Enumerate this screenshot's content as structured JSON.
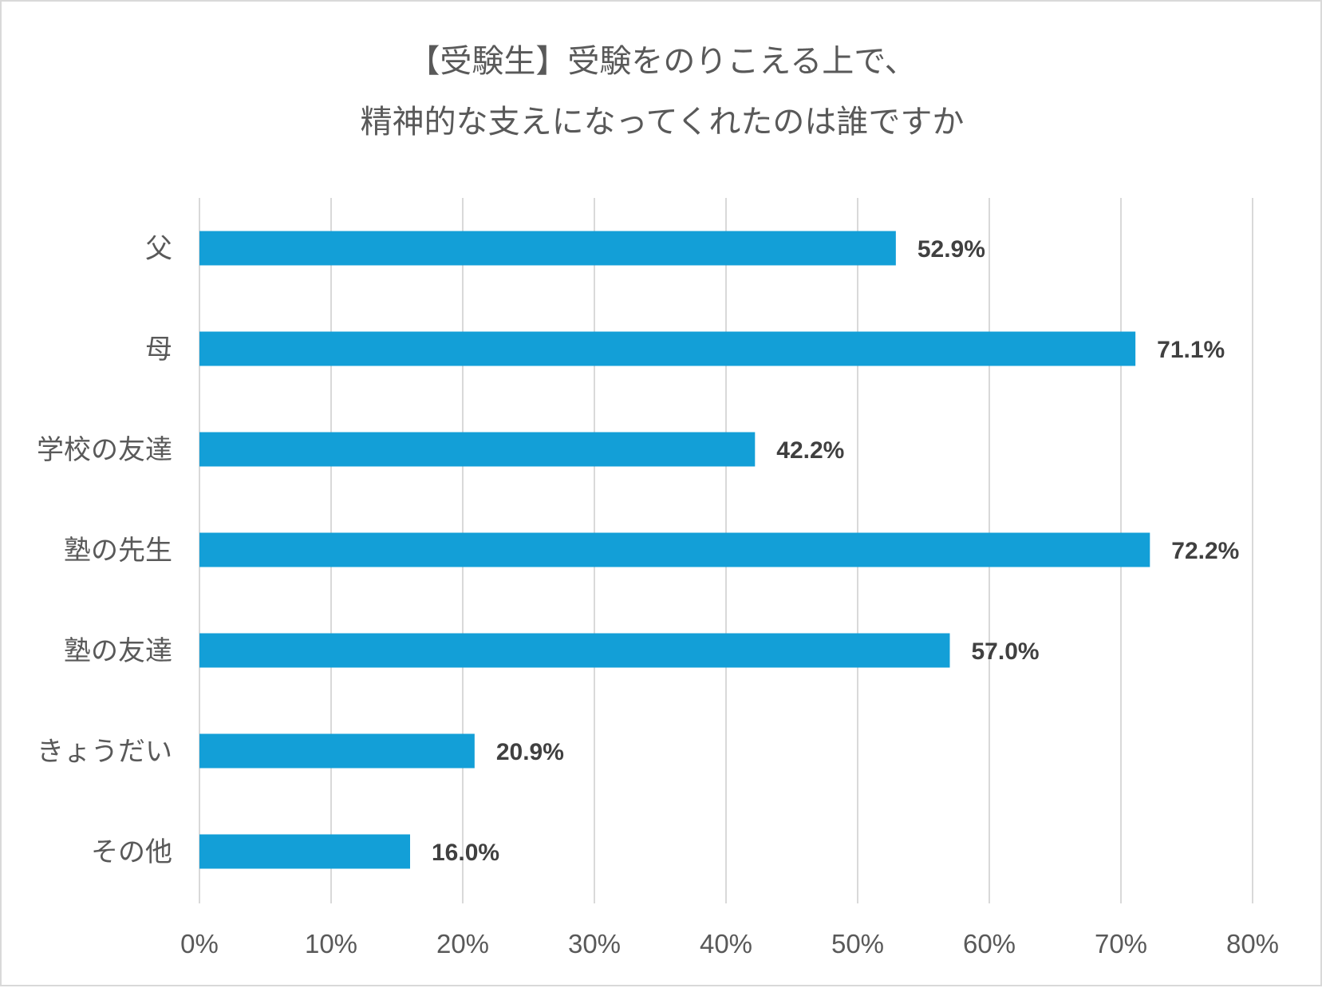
{
  "chart_data": {
    "type": "bar",
    "orientation": "horizontal",
    "title_lines": [
      "【受験生】受験をのりこえる上で、",
      "精神的な支えになってくれたのは誰ですか"
    ],
    "categories": [
      "父",
      "母",
      "学校の友達",
      "塾の先生",
      "塾の友達",
      "きょうだい",
      "その他"
    ],
    "values": [
      52.9,
      71.1,
      42.2,
      72.2,
      57.0,
      20.9,
      16.0
    ],
    "value_labels": [
      "52.9%",
      "71.1%",
      "42.2%",
      "72.2%",
      "57.0%",
      "20.9%",
      "16.0%"
    ],
    "x_ticks": [
      0,
      10,
      20,
      30,
      40,
      50,
      60,
      70,
      80
    ],
    "x_tick_labels": [
      "0%",
      "10%",
      "20%",
      "30%",
      "40%",
      "50%",
      "60%",
      "70%",
      "80%"
    ],
    "xlim": [
      0,
      80
    ],
    "xlabel": "",
    "ylabel": "",
    "grid": "vertical",
    "legend": "none",
    "colors": {
      "bar": "#139fd7",
      "grid": "#d9d9d9",
      "text": "#595959",
      "value_text": "#404040"
    }
  }
}
